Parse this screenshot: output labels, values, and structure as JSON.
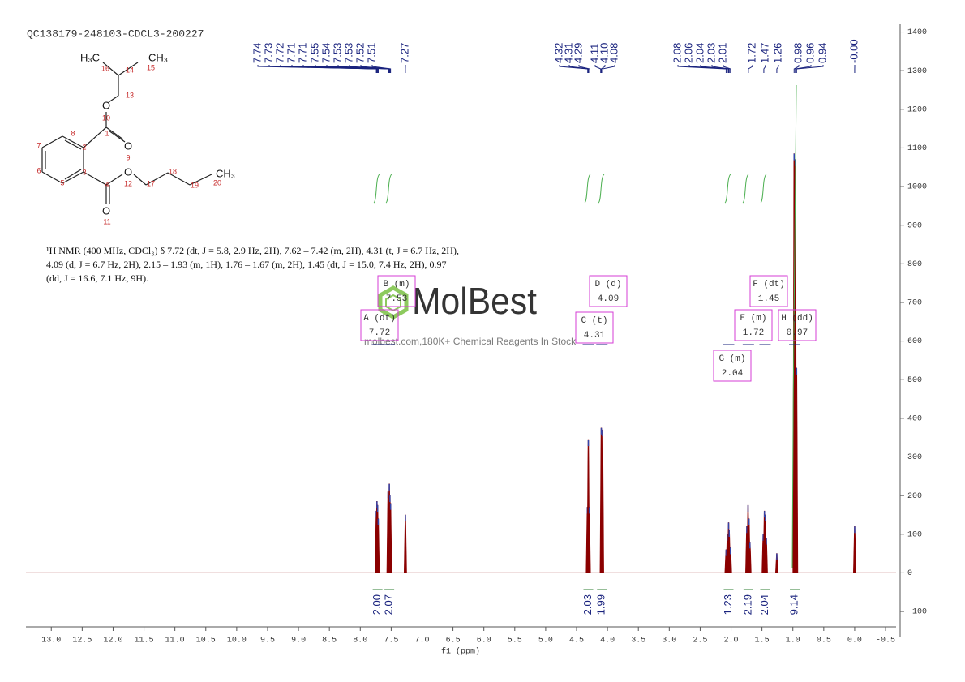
{
  "chart_data": {
    "type": "spectrum",
    "title": "QC138179-248103-CDCL3-200227",
    "xlabel": "f1 (ppm)",
    "xlim": [
      13.41,
      -0.67
    ],
    "xticks": [
      {
        "value": 13,
        "label": "13.0"
      },
      12.5,
      {
        "value": 12,
        "label": "12.0"
      },
      11.5,
      {
        "value": 11,
        "label": "11.0"
      },
      10.5,
      {
        "value": 10,
        "label": "10.0"
      },
      9.5,
      {
        "value": 9,
        "label": "9.0"
      },
      8.5,
      {
        "value": 8,
        "label": "8.0"
      },
      7.5,
      {
        "value": 7,
        "label": "7.0"
      },
      6.5,
      {
        "value": 6,
        "label": "6.0"
      },
      5.5,
      {
        "value": 5,
        "label": "5.0"
      },
      4.5,
      {
        "value": 4,
        "label": "4.0"
      },
      3.5,
      {
        "value": 3,
        "label": "3.0"
      },
      2.5,
      {
        "value": 2,
        "label": "2.0"
      },
      1.5,
      {
        "value": 1,
        "label": "1.0"
      },
      0.5,
      {
        "value": 0,
        "label": "0.0"
      },
      -0.5
    ],
    "ylim": [
      -165,
      1420
    ],
    "yticks": [
      -100,
      0,
      100,
      200,
      300,
      400,
      500,
      600,
      700,
      800,
      900,
      1000,
      1100,
      1200,
      1300,
      1400
    ],
    "color": "#8b0000",
    "x": [
      7.74,
      7.73,
      7.72,
      7.71,
      7.55,
      7.53,
      7.52,
      7.51,
      7.27,
      4.325,
      4.31,
      4.295,
      4.1,
      4.08,
      2.08,
      2.06,
      2.04,
      2.03,
      2.01,
      1.745,
      1.725,
      1.71,
      1.695,
      1.48,
      1.46,
      1.445,
      1.43,
      1.26,
      0.98,
      0.96,
      0.94,
      0
    ],
    "values": [
      160,
      185,
      175,
      140,
      210,
      230,
      200,
      180,
      150,
      170,
      345,
      170,
      375,
      370,
      60,
      100,
      130,
      110,
      65,
      120,
      175,
      140,
      80,
      100,
      160,
      150,
      90,
      50,
      1085,
      1070,
      530,
      120
    ],
    "peak_labels": [
      "7.74",
      "7.73",
      "7.72",
      "7.71",
      "7.71",
      "7.55",
      "7.54",
      "7.53",
      "7.53",
      "7.52",
      "7.51",
      "7.27",
      "4.32",
      "4.31",
      "4.29",
      "4.11",
      "4.10",
      "4.08",
      "2.08",
      "2.06",
      "2.04",
      "2.03",
      "2.01",
      "1.72",
      "1.47",
      "1.26",
      "0.98",
      "0.96",
      "0.94",
      "-0.00"
    ],
    "multiplets": [
      {
        "name": "A (dt)",
        "shift": 7.72,
        "integral": "2.00"
      },
      {
        "name": "B (m)",
        "shift": 7.53,
        "integral": "2.07"
      },
      {
        "name": "C (t)",
        "shift": 4.31,
        "integral": "2.03"
      },
      {
        "name": "D (d)",
        "shift": 4.09,
        "integral": "1.99"
      },
      {
        "name": "G (m)",
        "shift": 2.04,
        "integral": "1.23"
      },
      {
        "name": "E (m)",
        "shift": 1.72,
        "integral": "2.19"
      },
      {
        "name": "F (dt)",
        "shift": 1.45,
        "integral": "2.04"
      },
      {
        "name": "H (dd)",
        "shift": 0.97,
        "integral": "9.14"
      }
    ],
    "description": [
      "¹H NMR (400 MHz, CDCl₃) δ 7.72 (dt, J = 5.8, 2.9 Hz, 2H), 7.62 – 7.42 (m, 2H), 4.31 (t, J = 6.7 Hz, 2H),",
      "4.09 (d, J = 6.7 Hz, 2H), 2.15 – 1.93 (m, 1H), 1.76 – 1.67 (m, 2H), 1.45 (dt, J = 15.0, 7.4 Hz, 2H), 0.97",
      "(dd, J = 16.6, 7.1 Hz, 9H)."
    ],
    "structure": {
      "groups": [
        "H₃C",
        "CH₃",
        "O",
        "O",
        "O",
        "O",
        "CH₃"
      ],
      "atoms": [
        "16",
        "14",
        "15",
        "13",
        "10",
        "1",
        "8",
        "7",
        "2",
        "9",
        "6",
        "3",
        "12",
        "17",
        "18",
        "19",
        "20",
        "5",
        "4",
        "11"
      ]
    },
    "watermark": {
      "brand": "MolBest",
      "tagline": "molbest.com,180K+ Chemical Reagents In Stock"
    }
  }
}
